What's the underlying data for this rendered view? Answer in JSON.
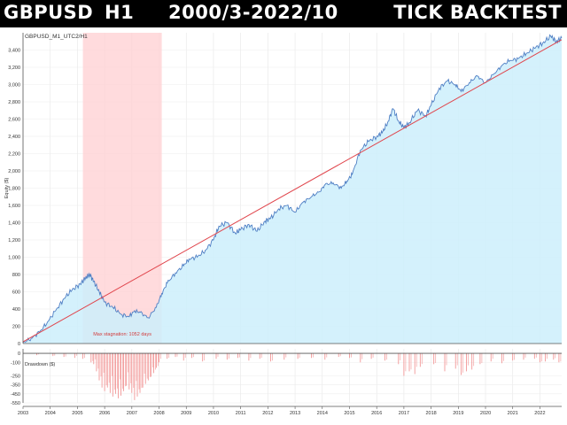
{
  "banner": {
    "symbol": "GBPUSD",
    "timeframe": "H1",
    "period": "2000/3-2022/10",
    "mode": "TICK BACKTEST"
  },
  "chart_data": [
    {
      "type": "area",
      "title": "GBPUSD_M1_UTC2/H1",
      "ylabel": "Equity ($)",
      "ylim": [
        0,
        3600
      ],
      "yticks": [
        0,
        200,
        400,
        600,
        800,
        1000,
        1200,
        1400,
        1600,
        1800,
        2000,
        2200,
        2400,
        2600,
        2800,
        3000,
        3200,
        3400
      ],
      "ytick_labels": [
        "0",
        "200",
        "400",
        "600",
        "800",
        "1,000",
        "1,200",
        "1,400",
        "1,600",
        "1,800",
        "2,000",
        "2,200",
        "2,400",
        "2,600",
        "2,800",
        "3,000",
        "3,200",
        "3,400"
      ],
      "xlim": [
        2003.0,
        2022.8
      ],
      "xticks": [
        2003,
        2004,
        2005,
        2006,
        2007,
        2008,
        2009,
        2010,
        2011,
        2012,
        2013,
        2014,
        2015,
        2016,
        2017,
        2018,
        2019,
        2020,
        2021,
        2022
      ],
      "grid": true,
      "x": [
        2003.0,
        2003.3,
        2003.6,
        2003.9,
        2004.2,
        2004.5,
        2004.8,
        2005.1,
        2005.3,
        2005.45,
        2005.6,
        2005.8,
        2006.0,
        2006.3,
        2006.6,
        2006.9,
        2007.1,
        2007.3,
        2007.6,
        2007.9,
        2008.1,
        2008.3,
        2008.6,
        2008.9,
        2009.1,
        2009.4,
        2009.7,
        2010.0,
        2010.2,
        2010.5,
        2010.8,
        2011.0,
        2011.3,
        2011.6,
        2011.9,
        2012.1,
        2012.4,
        2012.7,
        2013.0,
        2013.3,
        2013.6,
        2013.9,
        2014.1,
        2014.4,
        2014.7,
        2014.9,
        2015.1,
        2015.4,
        2015.7,
        2016.0,
        2016.2,
        2016.4,
        2016.6,
        2016.8,
        2017.0,
        2017.2,
        2017.5,
        2017.8,
        2018.0,
        2018.3,
        2018.6,
        2018.9,
        2019.1,
        2019.4,
        2019.7,
        2020.0,
        2020.3,
        2020.6,
        2020.9,
        2021.2,
        2021.5,
        2021.8,
        2022.1,
        2022.4,
        2022.6,
        2022.8
      ],
      "equity": [
        10,
        60,
        130,
        250,
        380,
        520,
        620,
        690,
        760,
        800,
        720,
        600,
        480,
        420,
        340,
        310,
        380,
        360,
        300,
        420,
        580,
        700,
        820,
        900,
        980,
        1000,
        1080,
        1200,
        1360,
        1400,
        1280,
        1320,
        1380,
        1300,
        1420,
        1450,
        1560,
        1600,
        1520,
        1640,
        1700,
        1760,
        1840,
        1860,
        1800,
        1880,
        1960,
        2240,
        2340,
        2400,
        2440,
        2560,
        2720,
        2580,
        2500,
        2560,
        2700,
        2640,
        2760,
        2960,
        3040,
        3000,
        2920,
        3020,
        3100,
        3020,
        3120,
        3220,
        3280,
        3300,
        3360,
        3420,
        3480,
        3560,
        3500,
        3540
      ],
      "trend": {
        "x": [
          2003.0,
          2022.8
        ],
        "y": [
          20,
          3520
        ]
      },
      "stagnation": {
        "x_start": 2005.2,
        "x_end": 2008.1,
        "label": "Max stagnation: 1052 days"
      }
    },
    {
      "type": "bar",
      "ylabel": "Drawdown ($)",
      "ylim": [
        -550,
        50
      ],
      "yticks": [
        0,
        -100,
        -250,
        -350,
        -450,
        -550
      ],
      "ytick_labels": [
        "0",
        "-100",
        "-250",
        "-350",
        "-450",
        "-550"
      ],
      "x": [
        2003.5,
        2004.1,
        2004.5,
        2004.9,
        2005.2,
        2005.5,
        2005.6,
        2005.7,
        2005.8,
        2005.9,
        2006.0,
        2006.1,
        2006.2,
        2006.3,
        2006.4,
        2006.5,
        2006.6,
        2006.7,
        2006.8,
        2006.9,
        2007.0,
        2007.1,
        2007.2,
        2007.3,
        2007.4,
        2007.5,
        2007.6,
        2007.7,
        2007.8,
        2007.9,
        2008.0,
        2008.3,
        2008.6,
        2008.9,
        2009.2,
        2009.6,
        2010.1,
        2010.5,
        2010.9,
        2011.3,
        2011.7,
        2012.1,
        2012.6,
        2013.1,
        2013.6,
        2014.1,
        2014.6,
        2015.0,
        2015.4,
        2015.8,
        2016.3,
        2016.8,
        2017.0,
        2017.2,
        2017.4,
        2017.6,
        2018.1,
        2018.5,
        2018.9,
        2019.1,
        2019.3,
        2019.5,
        2019.8,
        2020.2,
        2020.6,
        2021.0,
        2021.4,
        2021.8,
        2022.0,
        2022.2,
        2022.5,
        2022.7
      ],
      "values": [
        -20,
        -30,
        -40,
        -50,
        -60,
        -100,
        -120,
        -200,
        -300,
        -380,
        -420,
        -380,
        -440,
        -480,
        -450,
        -500,
        -470,
        -420,
        -360,
        -400,
        -440,
        -520,
        -480,
        -440,
        -380,
        -340,
        -300,
        -260,
        -220,
        -160,
        -100,
        -60,
        -40,
        -80,
        -50,
        -90,
        -60,
        -70,
        -50,
        -80,
        -60,
        -90,
        -70,
        -60,
        -50,
        -70,
        -40,
        -50,
        -100,
        -60,
        -80,
        -120,
        -250,
        -200,
        -230,
        -150,
        -120,
        -200,
        -170,
        -240,
        -200,
        -180,
        -120,
        -90,
        -110,
        -80,
        -70,
        -60,
        -100,
        -90,
        -70,
        -100
      ]
    }
  ]
}
